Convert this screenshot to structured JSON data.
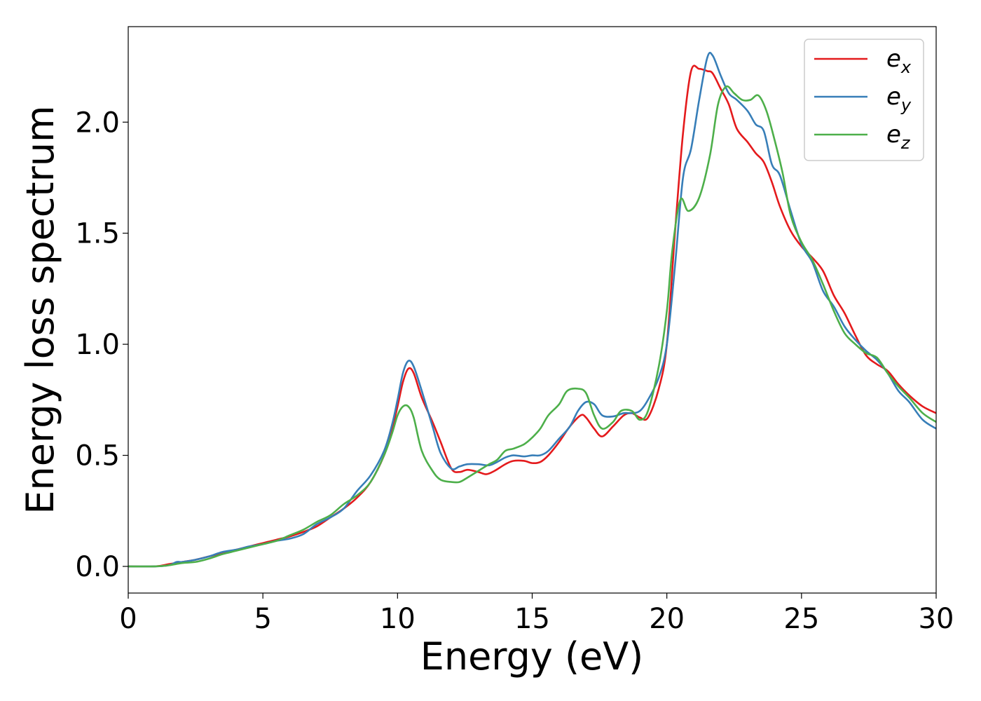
{
  "chart_data": {
    "type": "line",
    "title": "",
    "xlabel": "Energy (eV)",
    "ylabel": "Energy loss spectrum",
    "xlim": [
      0,
      30
    ],
    "ylim": [
      -0.12,
      2.43
    ],
    "xticks": [
      "0",
      "5",
      "10",
      "15",
      "20",
      "25",
      "30"
    ],
    "xtick_values": [
      0,
      5,
      10,
      15,
      20,
      25,
      30
    ],
    "yticks": [
      "0.0",
      "0.5",
      "1.0",
      "1.5",
      "2.0"
    ],
    "ytick_values": [
      0.0,
      0.5,
      1.0,
      1.5,
      2.0
    ],
    "grid": false,
    "legend_position": "top-right",
    "series": [
      {
        "name": "e_x",
        "legend_main": "e",
        "legend_sub": "x",
        "color": "#e41a1c",
        "points": [
          [
            0,
            0
          ],
          [
            1,
            0
          ],
          [
            1.5,
            0.01
          ],
          [
            2,
            0.02
          ],
          [
            2.5,
            0.03
          ],
          [
            3,
            0.045
          ],
          [
            3.5,
            0.06
          ],
          [
            4,
            0.075
          ],
          [
            4.5,
            0.09
          ],
          [
            5,
            0.105
          ],
          [
            5.5,
            0.12
          ],
          [
            6,
            0.135
          ],
          [
            6.5,
            0.155
          ],
          [
            7,
            0.18
          ],
          [
            7.5,
            0.22
          ],
          [
            8,
            0.26
          ],
          [
            8.5,
            0.31
          ],
          [
            9,
            0.38
          ],
          [
            9.5,
            0.5
          ],
          [
            9.8,
            0.62
          ],
          [
            10,
            0.72
          ],
          [
            10.2,
            0.83
          ],
          [
            10.4,
            0.89
          ],
          [
            10.6,
            0.87
          ],
          [
            10.9,
            0.76
          ],
          [
            11.3,
            0.65
          ],
          [
            11.6,
            0.56
          ],
          [
            12,
            0.44
          ],
          [
            12.3,
            0.425
          ],
          [
            12.6,
            0.435
          ],
          [
            13,
            0.425
          ],
          [
            13.3,
            0.415
          ],
          [
            13.6,
            0.43
          ],
          [
            14,
            0.46
          ],
          [
            14.3,
            0.475
          ],
          [
            14.7,
            0.475
          ],
          [
            15,
            0.465
          ],
          [
            15.3,
            0.47
          ],
          [
            15.6,
            0.5
          ],
          [
            16,
            0.56
          ],
          [
            16.4,
            0.63
          ],
          [
            16.8,
            0.68
          ],
          [
            17,
            0.67
          ],
          [
            17.3,
            0.62
          ],
          [
            17.6,
            0.585
          ],
          [
            18,
            0.63
          ],
          [
            18.4,
            0.68
          ],
          [
            18.7,
            0.69
          ],
          [
            19,
            0.67
          ],
          [
            19.3,
            0.67
          ],
          [
            19.7,
            0.8
          ],
          [
            20,
            1.0
          ],
          [
            20.3,
            1.5
          ],
          [
            20.6,
            1.95
          ],
          [
            20.9,
            2.23
          ],
          [
            21.2,
            2.24
          ],
          [
            21.5,
            2.23
          ],
          [
            21.7,
            2.22
          ],
          [
            22,
            2.15
          ],
          [
            22.3,
            2.08
          ],
          [
            22.6,
            1.97
          ],
          [
            23,
            1.91
          ],
          [
            23.3,
            1.86
          ],
          [
            23.6,
            1.82
          ],
          [
            23.9,
            1.73
          ],
          [
            24.2,
            1.62
          ],
          [
            24.6,
            1.51
          ],
          [
            25,
            1.44
          ],
          [
            25.4,
            1.39
          ],
          [
            25.8,
            1.33
          ],
          [
            26.2,
            1.22
          ],
          [
            26.6,
            1.14
          ],
          [
            27,
            1.04
          ],
          [
            27.4,
            0.95
          ],
          [
            27.8,
            0.91
          ],
          [
            28.2,
            0.88
          ],
          [
            28.6,
            0.82
          ],
          [
            29,
            0.77
          ],
          [
            29.5,
            0.72
          ],
          [
            30,
            0.69
          ]
        ]
      },
      {
        "name": "e_y",
        "legend_main": "e",
        "legend_sub": "y",
        "color": "#377eb8",
        "points": [
          [
            0,
            0
          ],
          [
            1,
            0
          ],
          [
            1.5,
            0.005
          ],
          [
            1.8,
            0.02
          ],
          [
            2,
            0.02
          ],
          [
            2.5,
            0.03
          ],
          [
            3,
            0.045
          ],
          [
            3.5,
            0.065
          ],
          [
            4,
            0.075
          ],
          [
            4.5,
            0.09
          ],
          [
            5,
            0.1
          ],
          [
            5.5,
            0.115
          ],
          [
            6,
            0.125
          ],
          [
            6.5,
            0.145
          ],
          [
            7,
            0.19
          ],
          [
            7.5,
            0.22
          ],
          [
            8,
            0.26
          ],
          [
            8.5,
            0.34
          ],
          [
            9,
            0.41
          ],
          [
            9.5,
            0.52
          ],
          [
            9.8,
            0.64
          ],
          [
            10,
            0.75
          ],
          [
            10.2,
            0.87
          ],
          [
            10.4,
            0.925
          ],
          [
            10.6,
            0.9
          ],
          [
            10.9,
            0.79
          ],
          [
            11.3,
            0.63
          ],
          [
            11.6,
            0.51
          ],
          [
            12,
            0.44
          ],
          [
            12.3,
            0.45
          ],
          [
            12.6,
            0.46
          ],
          [
            13,
            0.46
          ],
          [
            13.4,
            0.455
          ],
          [
            13.7,
            0.47
          ],
          [
            14,
            0.49
          ],
          [
            14.3,
            0.5
          ],
          [
            14.7,
            0.495
          ],
          [
            15,
            0.5
          ],
          [
            15.3,
            0.5
          ],
          [
            15.6,
            0.52
          ],
          [
            16,
            0.575
          ],
          [
            16.4,
            0.63
          ],
          [
            16.7,
            0.7
          ],
          [
            17,
            0.74
          ],
          [
            17.3,
            0.73
          ],
          [
            17.6,
            0.68
          ],
          [
            18,
            0.675
          ],
          [
            18.4,
            0.69
          ],
          [
            18.7,
            0.69
          ],
          [
            19,
            0.7
          ],
          [
            19.3,
            0.75
          ],
          [
            19.7,
            0.85
          ],
          [
            20,
            1.0
          ],
          [
            20.3,
            1.35
          ],
          [
            20.6,
            1.75
          ],
          [
            20.9,
            1.88
          ],
          [
            21.2,
            2.1
          ],
          [
            21.5,
            2.29
          ],
          [
            21.7,
            2.3
          ],
          [
            22,
            2.21
          ],
          [
            22.3,
            2.13
          ],
          [
            22.6,
            2.1
          ],
          [
            23,
            2.05
          ],
          [
            23.3,
            1.99
          ],
          [
            23.6,
            1.96
          ],
          [
            23.9,
            1.81
          ],
          [
            24.2,
            1.76
          ],
          [
            24.6,
            1.6
          ],
          [
            25,
            1.45
          ],
          [
            25.4,
            1.37
          ],
          [
            25.8,
            1.24
          ],
          [
            26.2,
            1.17
          ],
          [
            26.6,
            1.08
          ],
          [
            27,
            1.02
          ],
          [
            27.4,
            0.97
          ],
          [
            27.8,
            0.93
          ],
          [
            28.2,
            0.87
          ],
          [
            28.6,
            0.79
          ],
          [
            29,
            0.74
          ],
          [
            29.5,
            0.66
          ],
          [
            30,
            0.62
          ]
        ]
      },
      {
        "name": "e_z",
        "legend_main": "e",
        "legend_sub": "z",
        "color": "#4daf4a",
        "points": [
          [
            0,
            0
          ],
          [
            1,
            0
          ],
          [
            1.5,
            0.005
          ],
          [
            2,
            0.015
          ],
          [
            2.5,
            0.02
          ],
          [
            3,
            0.035
          ],
          [
            3.5,
            0.055
          ],
          [
            4,
            0.07
          ],
          [
            4.5,
            0.085
          ],
          [
            5,
            0.1
          ],
          [
            5.5,
            0.115
          ],
          [
            6,
            0.14
          ],
          [
            6.5,
            0.165
          ],
          [
            7,
            0.2
          ],
          [
            7.5,
            0.23
          ],
          [
            8,
            0.28
          ],
          [
            8.5,
            0.32
          ],
          [
            9,
            0.38
          ],
          [
            9.5,
            0.5
          ],
          [
            9.8,
            0.6
          ],
          [
            10,
            0.68
          ],
          [
            10.2,
            0.72
          ],
          [
            10.4,
            0.72
          ],
          [
            10.6,
            0.67
          ],
          [
            10.9,
            0.52
          ],
          [
            11.3,
            0.43
          ],
          [
            11.6,
            0.39
          ],
          [
            12,
            0.38
          ],
          [
            12.3,
            0.38
          ],
          [
            12.6,
            0.4
          ],
          [
            13,
            0.43
          ],
          [
            13.4,
            0.46
          ],
          [
            13.7,
            0.48
          ],
          [
            14,
            0.52
          ],
          [
            14.3,
            0.53
          ],
          [
            14.7,
            0.55
          ],
          [
            15,
            0.58
          ],
          [
            15.3,
            0.62
          ],
          [
            15.6,
            0.68
          ],
          [
            16,
            0.73
          ],
          [
            16.3,
            0.79
          ],
          [
            16.7,
            0.8
          ],
          [
            17,
            0.78
          ],
          [
            17.3,
            0.68
          ],
          [
            17.6,
            0.62
          ],
          [
            18,
            0.65
          ],
          [
            18.3,
            0.7
          ],
          [
            18.7,
            0.7
          ],
          [
            19,
            0.66
          ],
          [
            19.3,
            0.7
          ],
          [
            19.7,
            0.9
          ],
          [
            20,
            1.15
          ],
          [
            20.2,
            1.42
          ],
          [
            20.5,
            1.65
          ],
          [
            20.8,
            1.6
          ],
          [
            21.2,
            1.66
          ],
          [
            21.6,
            1.85
          ],
          [
            21.9,
            2.08
          ],
          [
            22.2,
            2.16
          ],
          [
            22.5,
            2.13
          ],
          [
            22.8,
            2.1
          ],
          [
            23.1,
            2.1
          ],
          [
            23.4,
            2.12
          ],
          [
            23.7,
            2.05
          ],
          [
            24,
            1.92
          ],
          [
            24.3,
            1.77
          ],
          [
            24.6,
            1.58
          ],
          [
            25,
            1.46
          ],
          [
            25.4,
            1.38
          ],
          [
            25.8,
            1.27
          ],
          [
            26.2,
            1.15
          ],
          [
            26.6,
            1.05
          ],
          [
            27,
            1.0
          ],
          [
            27.4,
            0.96
          ],
          [
            27.8,
            0.94
          ],
          [
            28.2,
            0.87
          ],
          [
            28.6,
            0.81
          ],
          [
            29,
            0.76
          ],
          [
            29.5,
            0.69
          ],
          [
            30,
            0.65
          ]
        ]
      }
    ]
  }
}
